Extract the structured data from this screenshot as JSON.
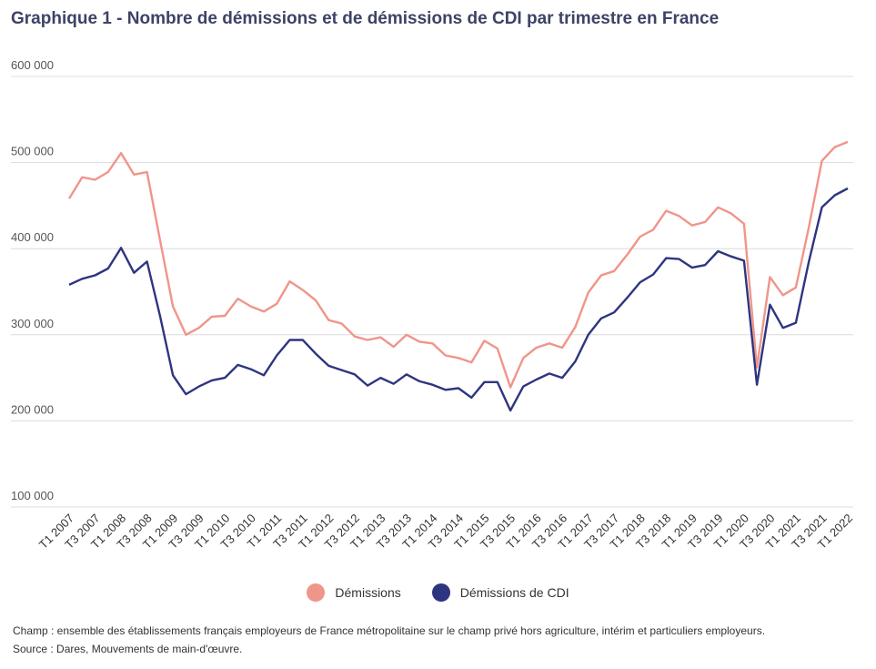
{
  "title": "Graphique 1 - Nombre de démissions et de démissions de CDI par trimestre en France",
  "notes": {
    "champ": "Champ : ensemble des établissements français employeurs de France métropolitaine sur le champ privé hors agriculture, intérim et particuliers employeurs.",
    "source": "Source : Dares, Mouvements de main-d'œuvre."
  },
  "chart_data": {
    "type": "line",
    "title": "Graphique 1 - Nombre de démissions et de démissions de CDI par trimestre en France",
    "xlabel": "",
    "ylabel": "",
    "ylim": [
      100000,
      600000
    ],
    "yticks": [
      100000,
      200000,
      300000,
      400000,
      500000,
      600000
    ],
    "ytick_labels": [
      "100 000",
      "200 000",
      "300 000",
      "400 000",
      "500 000",
      "600 000"
    ],
    "grid": "horizontal",
    "legend_position": "bottom",
    "tick_labels": [
      "T1 2007",
      "T3 2007",
      "T1 2008",
      "T3 2008",
      "T1 2009",
      "T3 2009",
      "T1 2010",
      "T3 2010",
      "T1 2011",
      "T3 2011",
      "T1 2012",
      "T3 2012",
      "T1 2013",
      "T3 2013",
      "T1 2014",
      "T3 2014",
      "T1 2015",
      "T3 2015",
      "T1 2016",
      "T3 2016",
      "T1 2017",
      "T3 2017",
      "T1 2018",
      "T3 2018",
      "T1 2019",
      "T3 2019",
      "T1 2020",
      "T3 2020",
      "T1 2021",
      "T3 2021",
      "T1 2022"
    ],
    "categories": [
      "T1 2007",
      "T2 2007",
      "T3 2007",
      "T4 2007",
      "T1 2008",
      "T2 2008",
      "T3 2008",
      "T4 2008",
      "T1 2009",
      "T2 2009",
      "T3 2009",
      "T4 2009",
      "T1 2010",
      "T2 2010",
      "T3 2010",
      "T4 2010",
      "T1 2011",
      "T2 2011",
      "T3 2011",
      "T4 2011",
      "T1 2012",
      "T2 2012",
      "T3 2012",
      "T4 2012",
      "T1 2013",
      "T2 2013",
      "T3 2013",
      "T4 2013",
      "T1 2014",
      "T2 2014",
      "T3 2014",
      "T4 2014",
      "T1 2015",
      "T2 2015",
      "T3 2015",
      "T4 2015",
      "T1 2016",
      "T2 2016",
      "T3 2016",
      "T4 2016",
      "T1 2017",
      "T2 2017",
      "T3 2017",
      "T4 2017",
      "T1 2018",
      "T2 2018",
      "T3 2018",
      "T4 2018",
      "T1 2019",
      "T2 2019",
      "T3 2019",
      "T4 2019",
      "T1 2020",
      "T2 2020",
      "T3 2020",
      "T4 2020",
      "T1 2021",
      "T2 2021",
      "T3 2021",
      "T4 2021",
      "T1 2022"
    ],
    "series": [
      {
        "name": "Démissions",
        "color": "#f0958a",
        "values": [
          458000,
          483000,
          480000,
          489000,
          511000,
          486000,
          489000,
          410000,
          333000,
          300000,
          308000,
          321000,
          322000,
          342000,
          333000,
          327000,
          336000,
          362000,
          352000,
          340000,
          317000,
          313000,
          298000,
          294000,
          297000,
          286000,
          300000,
          292000,
          290000,
          276000,
          273000,
          268000,
          293000,
          284000,
          239000,
          273000,
          285000,
          290000,
          285000,
          309000,
          349000,
          369000,
          374000,
          393000,
          414000,
          422000,
          444000,
          438000,
          427000,
          431000,
          448000,
          441000,
          429000,
          262000,
          367000,
          346000,
          355000,
          425000,
          502000,
          518000,
          524000
        ]
      },
      {
        "name": "Démissions de CDI",
        "color": "#2e3580",
        "values": [
          358000,
          365000,
          369000,
          377000,
          401000,
          372000,
          385000,
          322000,
          253000,
          231000,
          240000,
          247000,
          250000,
          265000,
          260000,
          253000,
          276000,
          294000,
          294000,
          278000,
          264000,
          259000,
          254000,
          241000,
          250000,
          243000,
          254000,
          246000,
          242000,
          236000,
          238000,
          227000,
          245000,
          245000,
          212000,
          240000,
          248000,
          255000,
          250000,
          269000,
          300000,
          319000,
          326000,
          343000,
          361000,
          370000,
          389000,
          388000,
          378000,
          381000,
          397000,
          391000,
          386000,
          242000,
          335000,
          308000,
          314000,
          385000,
          448000,
          462000,
          470000
        ]
      }
    ]
  }
}
